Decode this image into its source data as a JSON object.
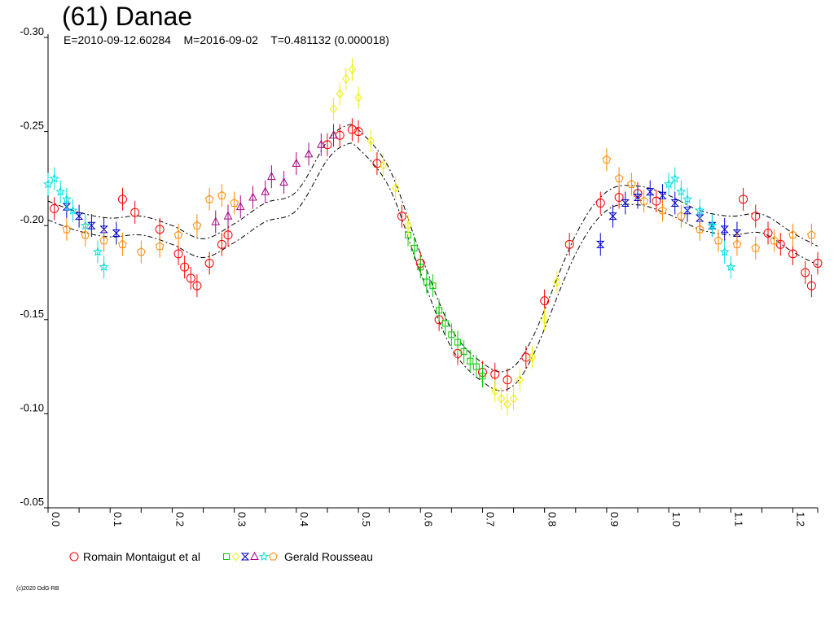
{
  "title": "(61) Danae",
  "subtitle": "E=2010-09-12.60284    M=2016-09-02    T=0.481132 (0.000018)",
  "credit": "(c)2020 OdG-RB",
  "chart_data": {
    "type": "scatter",
    "title": "(61) Danae",
    "xlabel": "",
    "ylabel": "",
    "xlim": [
      0.0,
      1.24
    ],
    "ylim": [
      -0.05,
      -0.3
    ],
    "y_axis_inverted": true,
    "x_ticks": [
      "0.0",
      "0.1",
      "0.2",
      "0.3",
      "0.4",
      "0.5",
      "0.6",
      "0.7",
      "0.8",
      "0.9",
      "1.0",
      "1.1",
      "1.2"
    ],
    "y_ticks": [
      "-0.30",
      "-0.25",
      "-0.20",
      "-0.15",
      "-0.10",
      "-0.05"
    ],
    "legend_position": "bottom-left",
    "legend": {
      "first_label": "Romain Montaigut et al",
      "last_label": "Gerald Rousseau"
    },
    "fit_curve": {
      "x": [
        0.0,
        0.05,
        0.1,
        0.15,
        0.2,
        0.25,
        0.3,
        0.35,
        0.4,
        0.45,
        0.48,
        0.5,
        0.55,
        0.6,
        0.65,
        0.7,
        0.74,
        0.78,
        0.85,
        0.9,
        0.95,
        1.0,
        1.05,
        1.1,
        1.15,
        1.2,
        1.24
      ],
      "y": [
        -0.208,
        -0.202,
        -0.199,
        -0.2,
        -0.195,
        -0.188,
        -0.196,
        -0.207,
        -0.213,
        -0.24,
        -0.248,
        -0.246,
        -0.225,
        -0.18,
        -0.14,
        -0.122,
        -0.118,
        -0.135,
        -0.19,
        -0.213,
        -0.216,
        -0.211,
        -0.203,
        -0.2,
        -0.201,
        -0.191,
        -0.184
      ],
      "band": 0.005
    },
    "series": [
      {
        "name": "Romain Montaigut et al",
        "marker": "circle",
        "color": "#ff0000",
        "x": [
          0.01,
          0.12,
          0.14,
          0.18,
          0.21,
          0.22,
          0.23,
          0.24,
          0.26,
          0.28,
          0.29,
          0.45,
          0.47,
          0.49,
          0.5,
          0.53,
          0.57,
          0.6,
          0.63,
          0.66,
          0.7,
          0.72,
          0.74,
          0.77,
          0.8,
          0.84,
          0.89,
          0.92,
          0.95,
          0.98,
          1.12,
          1.14,
          1.16,
          1.18,
          1.2,
          1.22,
          1.23,
          1.24
        ],
        "y": [
          -0.209,
          -0.214,
          -0.207,
          -0.198,
          -0.185,
          -0.178,
          -0.172,
          -0.168,
          -0.18,
          -0.19,
          -0.195,
          -0.243,
          -0.248,
          -0.251,
          -0.25,
          -0.233,
          -0.205,
          -0.18,
          -0.15,
          -0.132,
          -0.122,
          -0.121,
          -0.118,
          -0.13,
          -0.16,
          -0.19,
          -0.212,
          -0.215,
          -0.217,
          -0.213,
          -0.214,
          -0.205,
          -0.196,
          -0.19,
          -0.185,
          -0.175,
          -0.168,
          -0.18
        ]
      },
      {
        "name": "",
        "marker": "square",
        "color": "#00cc00",
        "x": [
          0.58,
          0.59,
          0.6,
          0.61,
          0.62,
          0.63,
          0.64,
          0.65,
          0.66,
          0.67,
          0.68,
          0.69,
          0.7
        ],
        "y": [
          -0.195,
          -0.188,
          -0.178,
          -0.17,
          -0.168,
          -0.155,
          -0.148,
          -0.142,
          -0.138,
          -0.133,
          -0.128,
          -0.125,
          -0.12
        ]
      },
      {
        "name": "",
        "marker": "diamond",
        "color": "#f0f000",
        "x": [
          0.46,
          0.47,
          0.48,
          0.49,
          0.5,
          0.52,
          0.54,
          0.56,
          0.58,
          0.72,
          0.73,
          0.74,
          0.75,
          0.76,
          0.78,
          0.8,
          0.82
        ],
        "y": [
          -0.262,
          -0.27,
          -0.278,
          -0.283,
          -0.268,
          -0.245,
          -0.232,
          -0.22,
          -0.2,
          -0.112,
          -0.108,
          -0.105,
          -0.108,
          -0.118,
          -0.13,
          -0.15,
          -0.17
        ]
      },
      {
        "name": "",
        "marker": "hourglass",
        "color": "#0000cc",
        "x": [
          0.03,
          0.05,
          0.07,
          0.09,
          0.11,
          0.89,
          0.91,
          0.93,
          0.95,
          0.97,
          0.99,
          1.01,
          1.03,
          1.05,
          1.07,
          1.09,
          1.11
        ],
        "y": [
          -0.21,
          -0.205,
          -0.2,
          -0.198,
          -0.196,
          -0.19,
          -0.205,
          -0.212,
          -0.215,
          -0.218,
          -0.216,
          -0.212,
          -0.208,
          -0.204,
          -0.2,
          -0.198,
          -0.196
        ]
      },
      {
        "name": "",
        "marker": "triangle",
        "color": "#aa0088",
        "x": [
          0.27,
          0.29,
          0.31,
          0.33,
          0.35,
          0.36,
          0.38,
          0.4,
          0.42,
          0.44,
          0.46
        ],
        "y": [
          -0.202,
          -0.205,
          -0.21,
          -0.215,
          -0.218,
          -0.226,
          -0.223,
          -0.233,
          -0.238,
          -0.243,
          -0.248
        ]
      },
      {
        "name": "",
        "marker": "star",
        "color": "#00e0e0",
        "x": [
          0.0,
          0.01,
          0.02,
          0.03,
          0.04,
          0.06,
          0.08,
          0.09,
          1.0,
          1.01,
          1.02,
          1.03,
          1.05,
          1.07,
          1.09,
          1.1
        ],
        "y": [
          -0.222,
          -0.225,
          -0.218,
          -0.214,
          -0.208,
          -0.2,
          -0.186,
          -0.178,
          -0.222,
          -0.225,
          -0.218,
          -0.214,
          -0.208,
          -0.2,
          -0.186,
          -0.178
        ]
      },
      {
        "name": "Gerald Rousseau",
        "marker": "pentagon",
        "color": "#ff8800",
        "x": [
          0.03,
          0.06,
          0.09,
          0.12,
          0.15,
          0.18,
          0.21,
          0.24,
          0.26,
          0.28,
          0.3,
          0.9,
          0.92,
          0.94,
          0.96,
          0.99,
          1.02,
          1.05,
          1.08,
          1.11,
          1.14,
          1.17,
          1.2,
          1.23
        ],
        "y": [
          -0.198,
          -0.195,
          -0.192,
          -0.19,
          -0.186,
          -0.189,
          -0.195,
          -0.2,
          -0.214,
          -0.216,
          -0.212,
          -0.235,
          -0.225,
          -0.222,
          -0.213,
          -0.208,
          -0.205,
          -0.198,
          -0.192,
          -0.19,
          -0.188,
          -0.192,
          -0.195,
          -0.195
        ]
      }
    ]
  }
}
